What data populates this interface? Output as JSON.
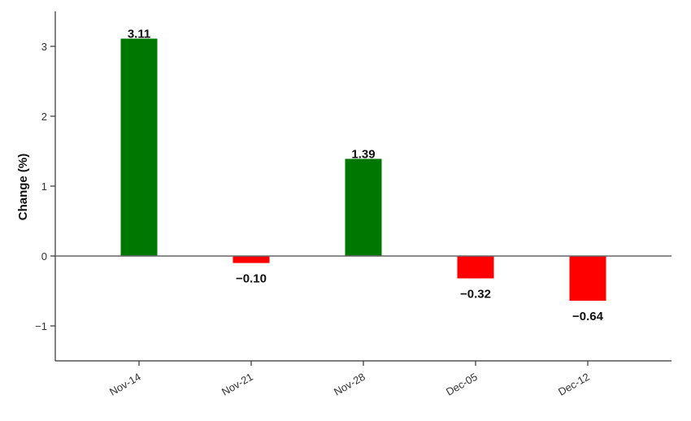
{
  "chart_data": {
    "type": "bar",
    "title": "",
    "xlabel": "",
    "ylabel": "Change (%)",
    "categories": [
      "Nov-14",
      "Nov-21",
      "Nov-28",
      "Dec-05",
      "Dec-12"
    ],
    "values": [
      3.11,
      -0.1,
      1.39,
      -0.32,
      -0.64
    ],
    "value_labels": [
      "3.11",
      "−0.10",
      "1.39",
      "−0.32",
      "−0.64"
    ],
    "ylim": [
      -1.5,
      3.5
    ],
    "yticks": [
      -1,
      0,
      1,
      2,
      3
    ],
    "ytick_labels": [
      "−1",
      "0",
      "1",
      "2",
      "3"
    ],
    "grid": false,
    "legend": "none",
    "colors": {
      "positive": "#007700",
      "negative": "#ff0000",
      "axis": "#333333",
      "zero_line": "#666666"
    }
  }
}
